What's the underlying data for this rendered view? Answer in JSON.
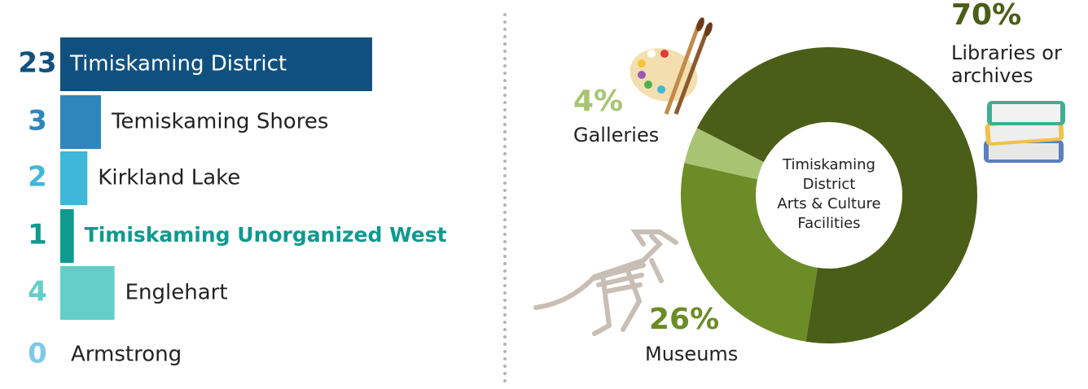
{
  "chart_data": [
    {
      "type": "bar",
      "categories": [
        "Timiskaming District",
        "Temiskaming Shores",
        "Kirkland Lake",
        "Timiskaming Unorganized West",
        "Englehart",
        "Armstrong"
      ],
      "values": [
        23,
        3,
        2,
        1,
        4,
        0
      ],
      "colors": [
        "#10507f",
        "#2e86bd",
        "#3fb7d9",
        "#0e9a8f",
        "#63cfc8",
        "#7fc8ea"
      ],
      "highlight_index": 3
    },
    {
      "type": "donut",
      "title": "Timiskaming District Arts & Culture Facilities",
      "categories": [
        "Libraries or archives",
        "Museums",
        "Galleries"
      ],
      "values": [
        70,
        26,
        4
      ],
      "value_labels": [
        "70%",
        "26%",
        "4%"
      ],
      "colors": [
        "#4a5e17",
        "#6b8c26",
        "#a8c472"
      ]
    }
  ]
}
